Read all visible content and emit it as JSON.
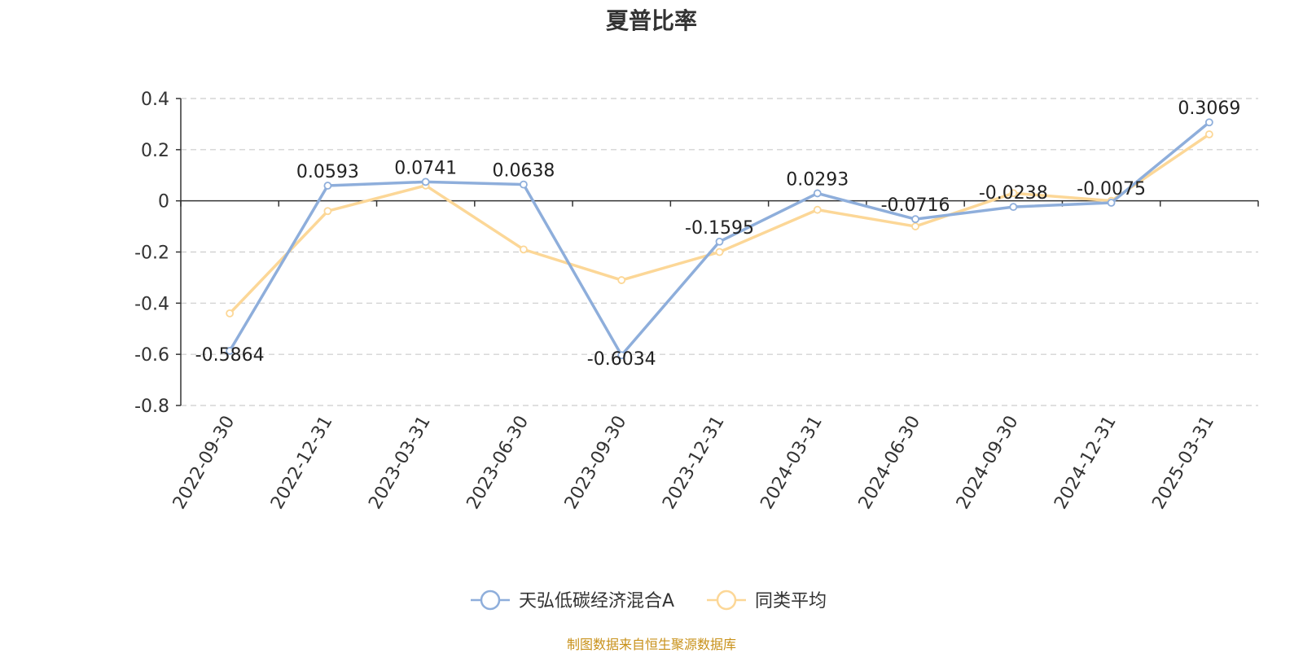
{
  "chart_data": {
    "type": "line",
    "title": "夏普比率",
    "categories": [
      "2022-09-30",
      "2022-12-31",
      "2023-03-31",
      "2023-06-30",
      "2023-09-30",
      "2023-12-31",
      "2024-03-31",
      "2024-06-30",
      "2024-09-30",
      "2024-12-31",
      "2025-03-31"
    ],
    "series": [
      {
        "name": "天弘低碳经济混合A",
        "color": "#8eaedb",
        "values": [
          -0.5864,
          0.0593,
          0.0741,
          0.0638,
          -0.6034,
          -0.1595,
          0.0293,
          -0.0716,
          -0.0238,
          -0.0075,
          0.3069
        ],
        "labels": [
          "-0.5864",
          "0.0593",
          "0.0741",
          "0.0638",
          "-0.6034",
          "-0.1595",
          "0.0293",
          "-0.0716",
          "-0.0238",
          "-0.0075",
          "0.3069"
        ]
      },
      {
        "name": "同类平均",
        "color": "#fcd797",
        "values": [
          -0.44,
          -0.04,
          0.06,
          -0.19,
          -0.31,
          -0.2,
          -0.035,
          -0.1,
          0.03,
          0.0,
          0.26
        ]
      }
    ],
    "ylim": [
      -0.8,
      0.4
    ],
    "yticks": [
      "0.4",
      "0.2",
      "0",
      "-0.2",
      "-0.4",
      "-0.6",
      "-0.8"
    ],
    "ytick_values": [
      0.4,
      0.2,
      0,
      -0.2,
      -0.4,
      -0.6,
      -0.8
    ],
    "grid": true,
    "legend_position": "bottom-center"
  },
  "footer": "制图数据来自恒生聚源数据库"
}
